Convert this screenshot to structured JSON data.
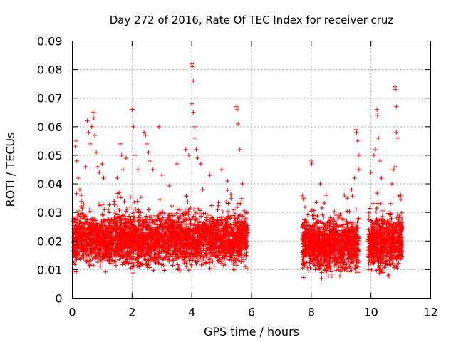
{
  "chart_data": {
    "type": "scatter",
    "title": "Day 272 of 2016, Rate Of TEC Index for receiver cruz",
    "xlabel": "GPS time / hours",
    "ylabel": "ROTI / TECUs",
    "xlim": [
      0,
      12
    ],
    "ylim": [
      0,
      0.09
    ],
    "xticks": [
      0,
      2,
      4,
      6,
      8,
      10,
      12
    ],
    "xtick_labels": [
      "0",
      "2",
      "4",
      "6",
      "8",
      "10",
      "12"
    ],
    "yticks": [
      0,
      0.01,
      0.02,
      0.03,
      0.04,
      0.05,
      0.06,
      0.07,
      0.08,
      0.09
    ],
    "ytick_labels": [
      "0",
      "0.01",
      "0.02",
      "0.03",
      "0.04",
      "0.05",
      "0.06",
      "0.07",
      "0.08",
      "0.09"
    ],
    "grid": true,
    "marker": "+",
    "color": "#ff0000",
    "series": [
      {
        "name": "ROTI",
        "segments": [
          {
            "x_start": 0.02,
            "x_end": 5.88,
            "typical_range": [
              0.008,
              0.03
            ],
            "peak": 0.082
          },
          {
            "x_start": 7.7,
            "x_end": 9.6,
            "typical_range": [
              0.006,
              0.028
            ],
            "peak": 0.059
          },
          {
            "x_start": 9.9,
            "x_end": 11.05,
            "typical_range": [
              0.006,
              0.03
            ],
            "peak": 0.074
          }
        ],
        "points": [
          [
            0.1,
            0.053
          ],
          [
            0.12,
            0.055
          ],
          [
            0.15,
            0.048
          ],
          [
            0.2,
            0.042
          ],
          [
            0.25,
            0.038
          ],
          [
            0.3,
            0.036
          ],
          [
            0.45,
            0.046
          ],
          [
            0.5,
            0.062
          ],
          [
            0.55,
            0.058
          ],
          [
            0.6,
            0.054
          ],
          [
            0.65,
            0.06
          ],
          [
            0.7,
            0.065
          ],
          [
            0.72,
            0.063
          ],
          [
            0.75,
            0.057
          ],
          [
            0.8,
            0.051
          ],
          [
            0.85,
            0.046
          ],
          [
            0.9,
            0.044
          ],
          [
            1.0,
            0.047
          ],
          [
            1.05,
            0.042
          ],
          [
            1.5,
            0.042
          ],
          [
            1.6,
            0.054
          ],
          [
            1.65,
            0.05
          ],
          [
            1.7,
            0.045
          ],
          [
            1.8,
            0.049
          ],
          [
            2.0,
            0.066
          ],
          [
            2.02,
            0.066
          ],
          [
            2.05,
            0.06
          ],
          [
            2.1,
            0.05
          ],
          [
            2.2,
            0.045
          ],
          [
            2.4,
            0.058
          ],
          [
            2.45,
            0.057
          ],
          [
            2.5,
            0.054
          ],
          [
            2.55,
            0.051
          ],
          [
            2.6,
            0.048
          ],
          [
            2.7,
            0.045
          ],
          [
            2.9,
            0.06
          ],
          [
            3.0,
            0.043
          ],
          [
            3.5,
            0.047
          ],
          [
            3.8,
            0.052
          ],
          [
            3.9,
            0.05
          ],
          [
            4.0,
            0.082
          ],
          [
            4.02,
            0.081
          ],
          [
            4.05,
            0.076
          ],
          [
            4.0,
            0.068
          ],
          [
            4.05,
            0.065
          ],
          [
            4.1,
            0.06
          ],
          [
            4.1,
            0.056
          ],
          [
            4.15,
            0.052
          ],
          [
            4.2,
            0.049
          ],
          [
            4.3,
            0.047
          ],
          [
            4.6,
            0.043
          ],
          [
            5.0,
            0.045
          ],
          [
            5.2,
            0.041
          ],
          [
            5.5,
            0.067
          ],
          [
            5.52,
            0.066
          ],
          [
            5.55,
            0.061
          ],
          [
            5.6,
            0.052
          ],
          [
            5.7,
            0.04
          ],
          [
            7.7,
            0.036
          ],
          [
            7.75,
            0.035
          ],
          [
            8.0,
            0.048
          ],
          [
            8.02,
            0.047
          ],
          [
            8.3,
            0.04
          ],
          [
            8.5,
            0.036
          ],
          [
            9.2,
            0.035
          ],
          [
            9.5,
            0.059
          ],
          [
            9.52,
            0.058
          ],
          [
            9.55,
            0.055
          ],
          [
            9.6,
            0.05
          ],
          [
            9.6,
            0.045
          ],
          [
            9.45,
            0.042
          ],
          [
            9.35,
            0.038
          ],
          [
            10.0,
            0.044
          ],
          [
            10.1,
            0.05
          ],
          [
            10.15,
            0.052
          ],
          [
            10.2,
            0.066
          ],
          [
            10.22,
            0.064
          ],
          [
            10.25,
            0.056
          ],
          [
            10.3,
            0.048
          ],
          [
            10.35,
            0.042
          ],
          [
            10.8,
            0.074
          ],
          [
            10.82,
            0.073
          ],
          [
            10.85,
            0.067
          ],
          [
            10.85,
            0.058
          ],
          [
            10.9,
            0.056
          ],
          [
            10.8,
            0.046
          ],
          [
            10.75,
            0.045
          ],
          [
            10.7,
            0.04
          ],
          [
            11.0,
            0.036
          ]
        ]
      }
    ]
  }
}
